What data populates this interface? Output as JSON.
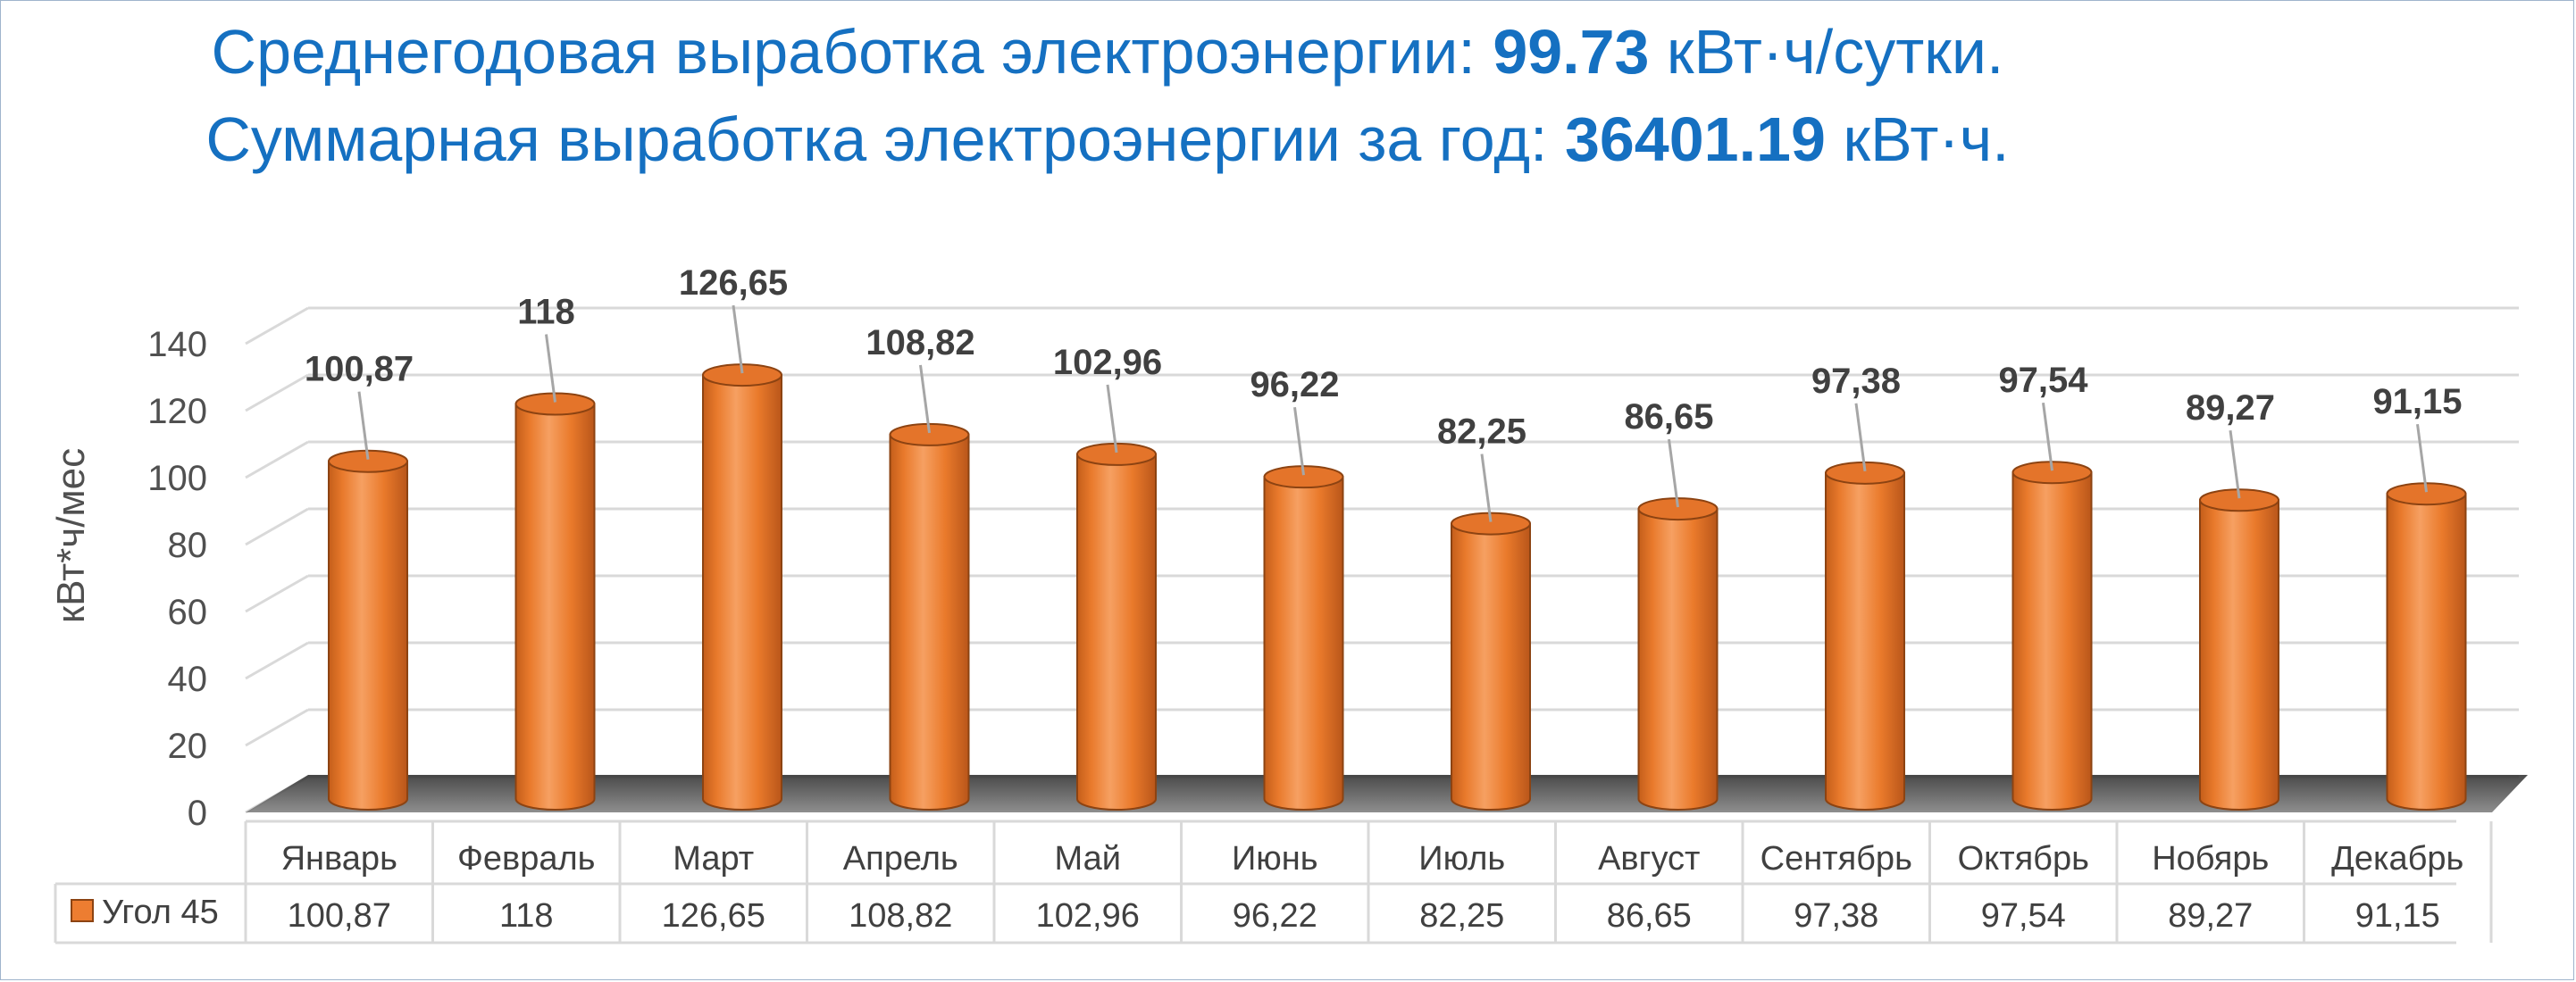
{
  "title": {
    "line1_prefix": "Среднегодовая выработка электроэнергии: ",
    "line1_value": "99.73",
    "line1_suffix": " кВт·ч/сутки.",
    "line2_prefix": "Суммарная выработка электроэнергии за год: ",
    "line2_value": "36401.19",
    "line2_suffix": " кВт·ч."
  },
  "colors": {
    "bar": "#ed7d31",
    "bar_dark": "#b65a1b",
    "bar_top": "#f39a5c",
    "title": "#1570c1",
    "grid": "#d9d9d9"
  },
  "chart_data": {
    "type": "bar",
    "ylabel": "кВт*ч/мес",
    "ylim": [
      0,
      140
    ],
    "yticks": [
      "0",
      "20",
      "40",
      "60",
      "80",
      "100",
      "120",
      "140"
    ],
    "categories": [
      "Январь",
      "Февраль",
      "Март",
      "Апрель",
      "Май",
      "Июнь",
      "Июль",
      "Август",
      "Сентябрь",
      "Октябрь",
      "Нобярь",
      "Декабрь"
    ],
    "series": [
      {
        "name": "Угол 45",
        "values": [
          100.87,
          118,
          126.65,
          108.82,
          102.96,
          96.22,
          82.25,
          86.65,
          97.38,
          97.54,
          89.27,
          91.15
        ],
        "labels": [
          "100,87",
          "118",
          "126,65",
          "108,82",
          "102,96",
          "96,22",
          "82,25",
          "86,65",
          "97,38",
          "97,54",
          "89,27",
          "91,15"
        ]
      }
    ],
    "grid": true,
    "legend": "data-table"
  }
}
